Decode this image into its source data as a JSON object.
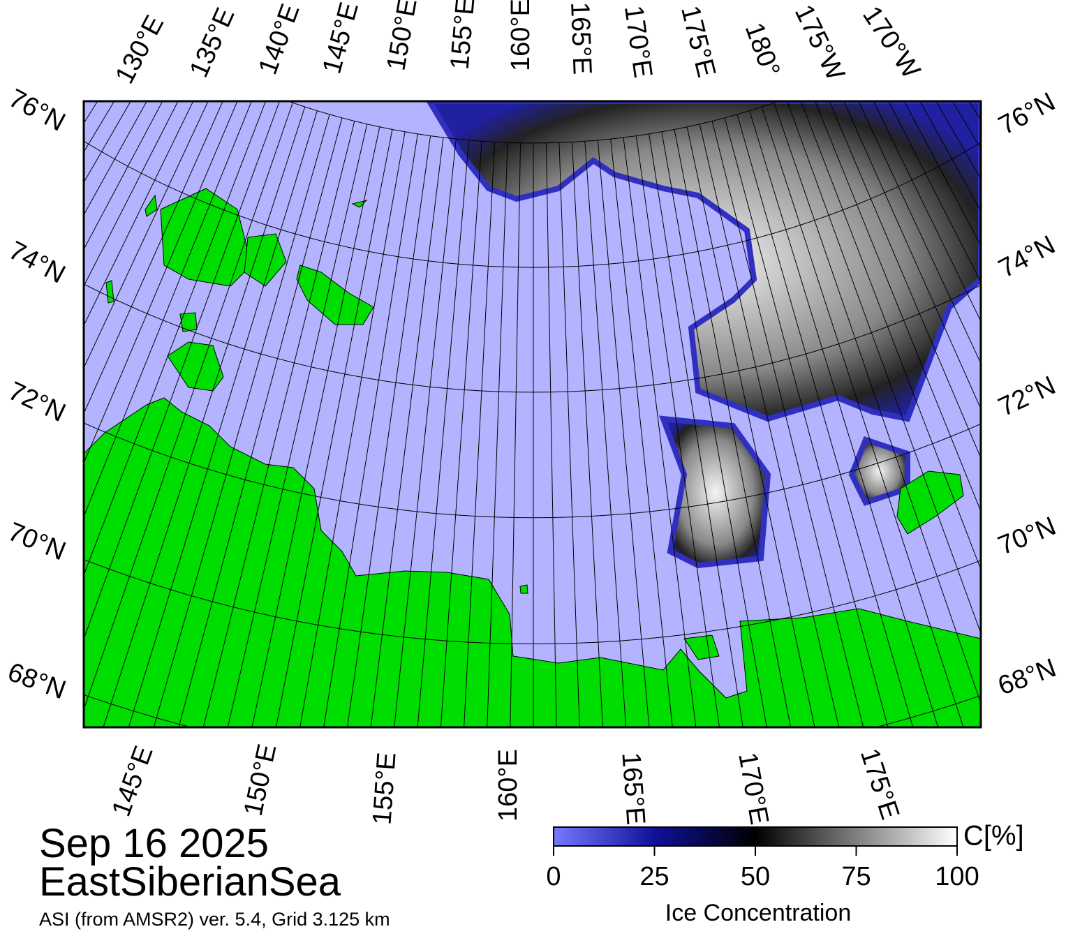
{
  "map": {
    "title": "Sep 16 2025",
    "region": "EastSiberianSea",
    "source": "ASI (from AMSR2) ver. 5.4,  Grid 3.125 km",
    "lat_labels_left": [
      "76°N",
      "74°N",
      "72°N",
      "70°N",
      "68°N"
    ],
    "lat_labels_right": [
      "76°N",
      "74°N",
      "72°N",
      "70°N",
      "68°N"
    ],
    "lon_labels_top": [
      "130°E",
      "135°E",
      "140°E",
      "145°E",
      "150°E",
      "155°E",
      "160°E",
      "165°E",
      "170°E",
      "175°E",
      "180°",
      "175°W",
      "170°W"
    ],
    "lon_labels_bottom": [
      "145°E",
      "150°E",
      "155°E",
      "160°E",
      "165°E",
      "170°E",
      "175°E"
    ]
  },
  "colorbar": {
    "label": "Ice Concentration",
    "unit": "C[%]",
    "lim": [
      0,
      100
    ],
    "ticks": [
      0,
      25,
      50,
      75,
      100
    ]
  }
}
